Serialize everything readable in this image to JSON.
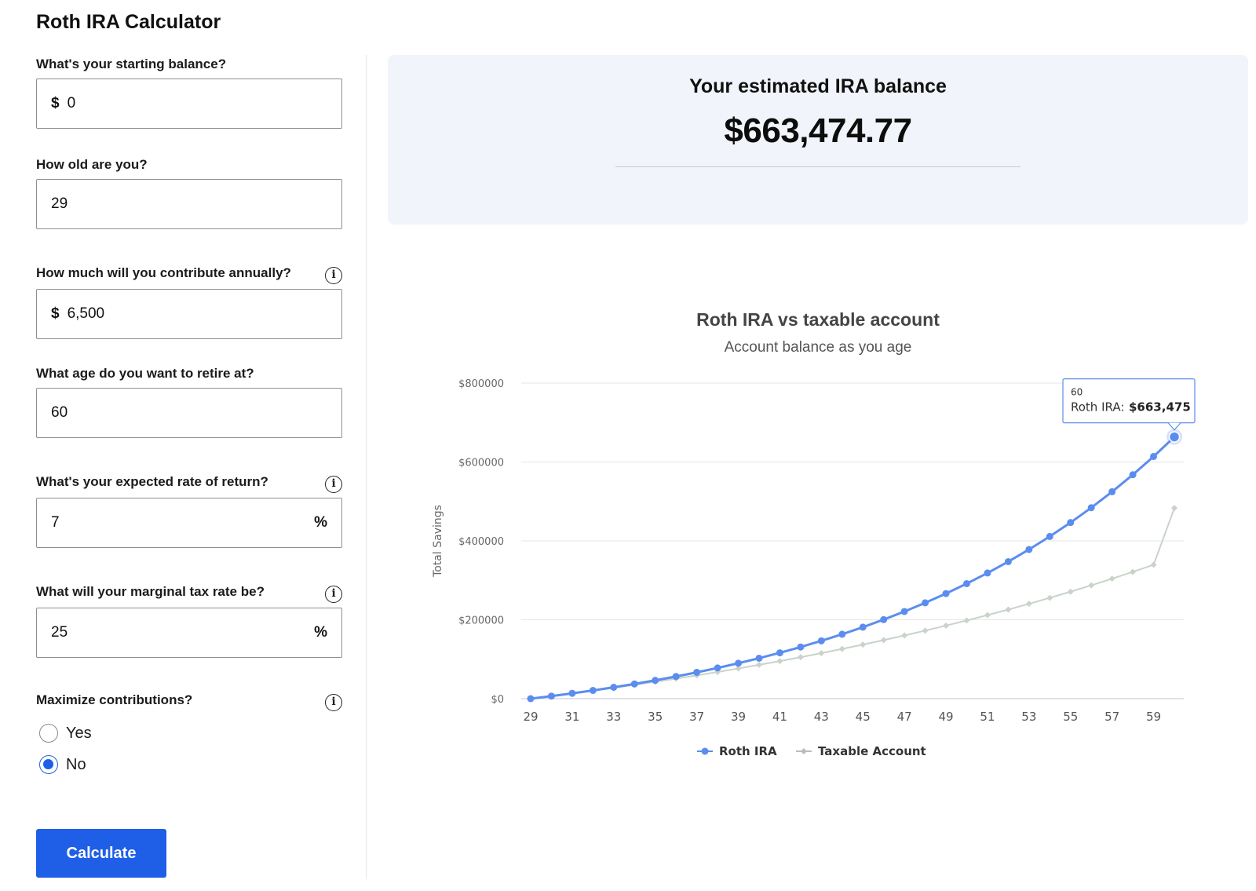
{
  "app": {
    "title": "Roth IRA Calculator"
  },
  "form": {
    "starting_balance": {
      "label": "What's your starting balance?",
      "prefix": "$",
      "value": "0"
    },
    "age": {
      "label": "How old are you?",
      "value": "29"
    },
    "annual_contribution": {
      "label": "How much will you contribute annually?",
      "prefix": "$",
      "value": "6,500",
      "info_icon": "info-icon"
    },
    "retire_age": {
      "label": "What age do you want to retire at?",
      "value": "60"
    },
    "rate_of_return": {
      "label": "What's your expected rate of return?",
      "value": "7",
      "suffix": "%",
      "info_icon": "info-icon"
    },
    "tax_rate": {
      "label": "What will your marginal tax rate be?",
      "value": "25",
      "suffix": "%",
      "info_icon": "info-icon"
    },
    "maximize": {
      "label": "Maximize contributions?",
      "info_icon": "info-icon",
      "options": [
        "Yes",
        "No"
      ],
      "selected": "No"
    },
    "calculate_label": "Calculate"
  },
  "result": {
    "title": "Your estimated IRA balance",
    "value": "$663,474.77"
  },
  "colors": {
    "accent": "#1f5ee6",
    "roth_series": "#5b8def",
    "taxable_series": "#c9d3c9",
    "card_bg": "#f1f4fa"
  },
  "chart_data": {
    "type": "line",
    "title": "Roth IRA vs taxable account",
    "subtitle": "Account balance as you age",
    "xlabel": "",
    "ylabel": "Total Savings",
    "ylim": [
      0,
      800000
    ],
    "yticks": [
      "$800000",
      "$600000",
      "$400000",
      "$200000",
      "$0"
    ],
    "ytick_values": [
      800000,
      600000,
      400000,
      200000,
      0
    ],
    "x": [
      29,
      30,
      31,
      32,
      33,
      34,
      35,
      36,
      37,
      38,
      39,
      40,
      41,
      42,
      43,
      44,
      45,
      46,
      47,
      48,
      49,
      50,
      51,
      52,
      53,
      54,
      55,
      56,
      57,
      58,
      59,
      60
    ],
    "xtick_labels": [
      "29",
      "31",
      "33",
      "35",
      "37",
      "39",
      "41",
      "43",
      "45",
      "47",
      "49",
      "51",
      "53",
      "55",
      "57",
      "59"
    ],
    "series": [
      {
        "name": "Roth IRA",
        "values": [
          0,
          6500,
          13455,
          20897,
          28860,
          37380,
          46497,
          56252,
          66690,
          77858,
          89808,
          102595,
          116277,
          130916,
          146580,
          163341,
          181275,
          200464,
          220997,
          242967,
          266475,
          291628,
          318542,
          347340,
          378154,
          411125,
          446403,
          484151,
          524541,
          567759,
          614002,
          663475
        ]
      },
      {
        "name": "Taxable Account",
        "values": [
          0,
          6500,
          13232,
          20204,
          27425,
          34904,
          42650,
          50672,
          58981,
          67587,
          76500,
          85731,
          95292,
          105194,
          115450,
          126072,
          137073,
          148467,
          160268,
          172490,
          185149,
          198260,
          211840,
          225904,
          240471,
          255558,
          271183,
          287367,
          304128,
          321488,
          339467,
          483000
        ]
      }
    ],
    "legend": [
      "Roth IRA",
      "Taxable Account"
    ],
    "legend_position": "bottom",
    "tooltip": {
      "x_label": "60",
      "series": "Roth IRA:",
      "value": "$663,475"
    }
  }
}
